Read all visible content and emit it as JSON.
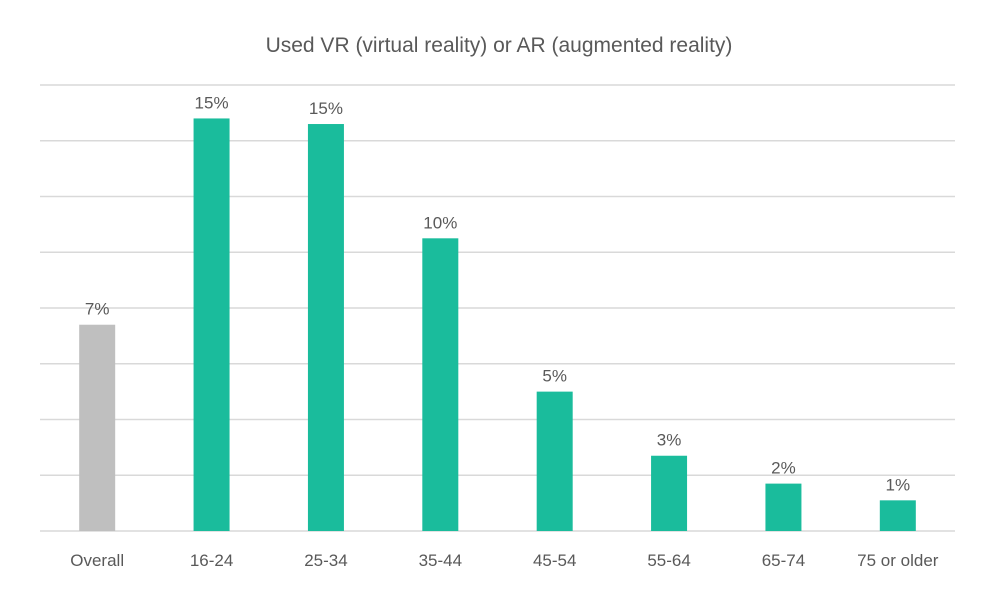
{
  "chart_data": {
    "type": "bar",
    "title": "Used VR (virtual reality) or AR (augmented reality)",
    "xlabel": "",
    "ylabel": "",
    "categories": [
      "Overall",
      "16-24",
      "25-34",
      "35-44",
      "45-54",
      "55-64",
      "65-74",
      "75 or older"
    ],
    "values": [
      7.4,
      14.8,
      14.6,
      10.5,
      5.0,
      2.7,
      1.7,
      1.1
    ],
    "data_labels": [
      "7%",
      "15%",
      "15%",
      "10%",
      "5%",
      "3%",
      "2%",
      "1%"
    ],
    "ylim": [
      0,
      16
    ],
    "y_gridline_step": 2,
    "grid": true,
    "y_axis_labels_shown": false,
    "legend": "none",
    "colors": {
      "overall": "#bfbfbf",
      "age_groups": "#1abc9c",
      "gridline": "#d9d9d9",
      "text": "#595959"
    }
  }
}
